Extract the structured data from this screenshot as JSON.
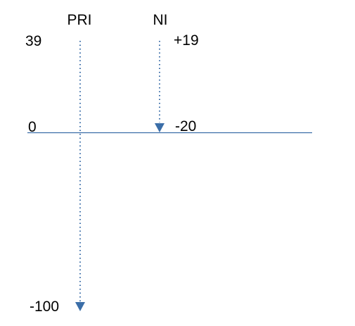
{
  "columns": [
    {
      "label": "PRI",
      "start_label": "39",
      "end_label": "-100"
    },
    {
      "label": "NI",
      "start_label": "+19",
      "end_label": "-20"
    }
  ],
  "baseline_label": "0",
  "colors": {
    "accent": "#3b6ea8",
    "text": "#000000",
    "background": "#ffffff"
  },
  "icons": {
    "pri_arrowhead": "triangle-down-icon",
    "ni_arrowhead": "triangle-down-icon"
  }
}
